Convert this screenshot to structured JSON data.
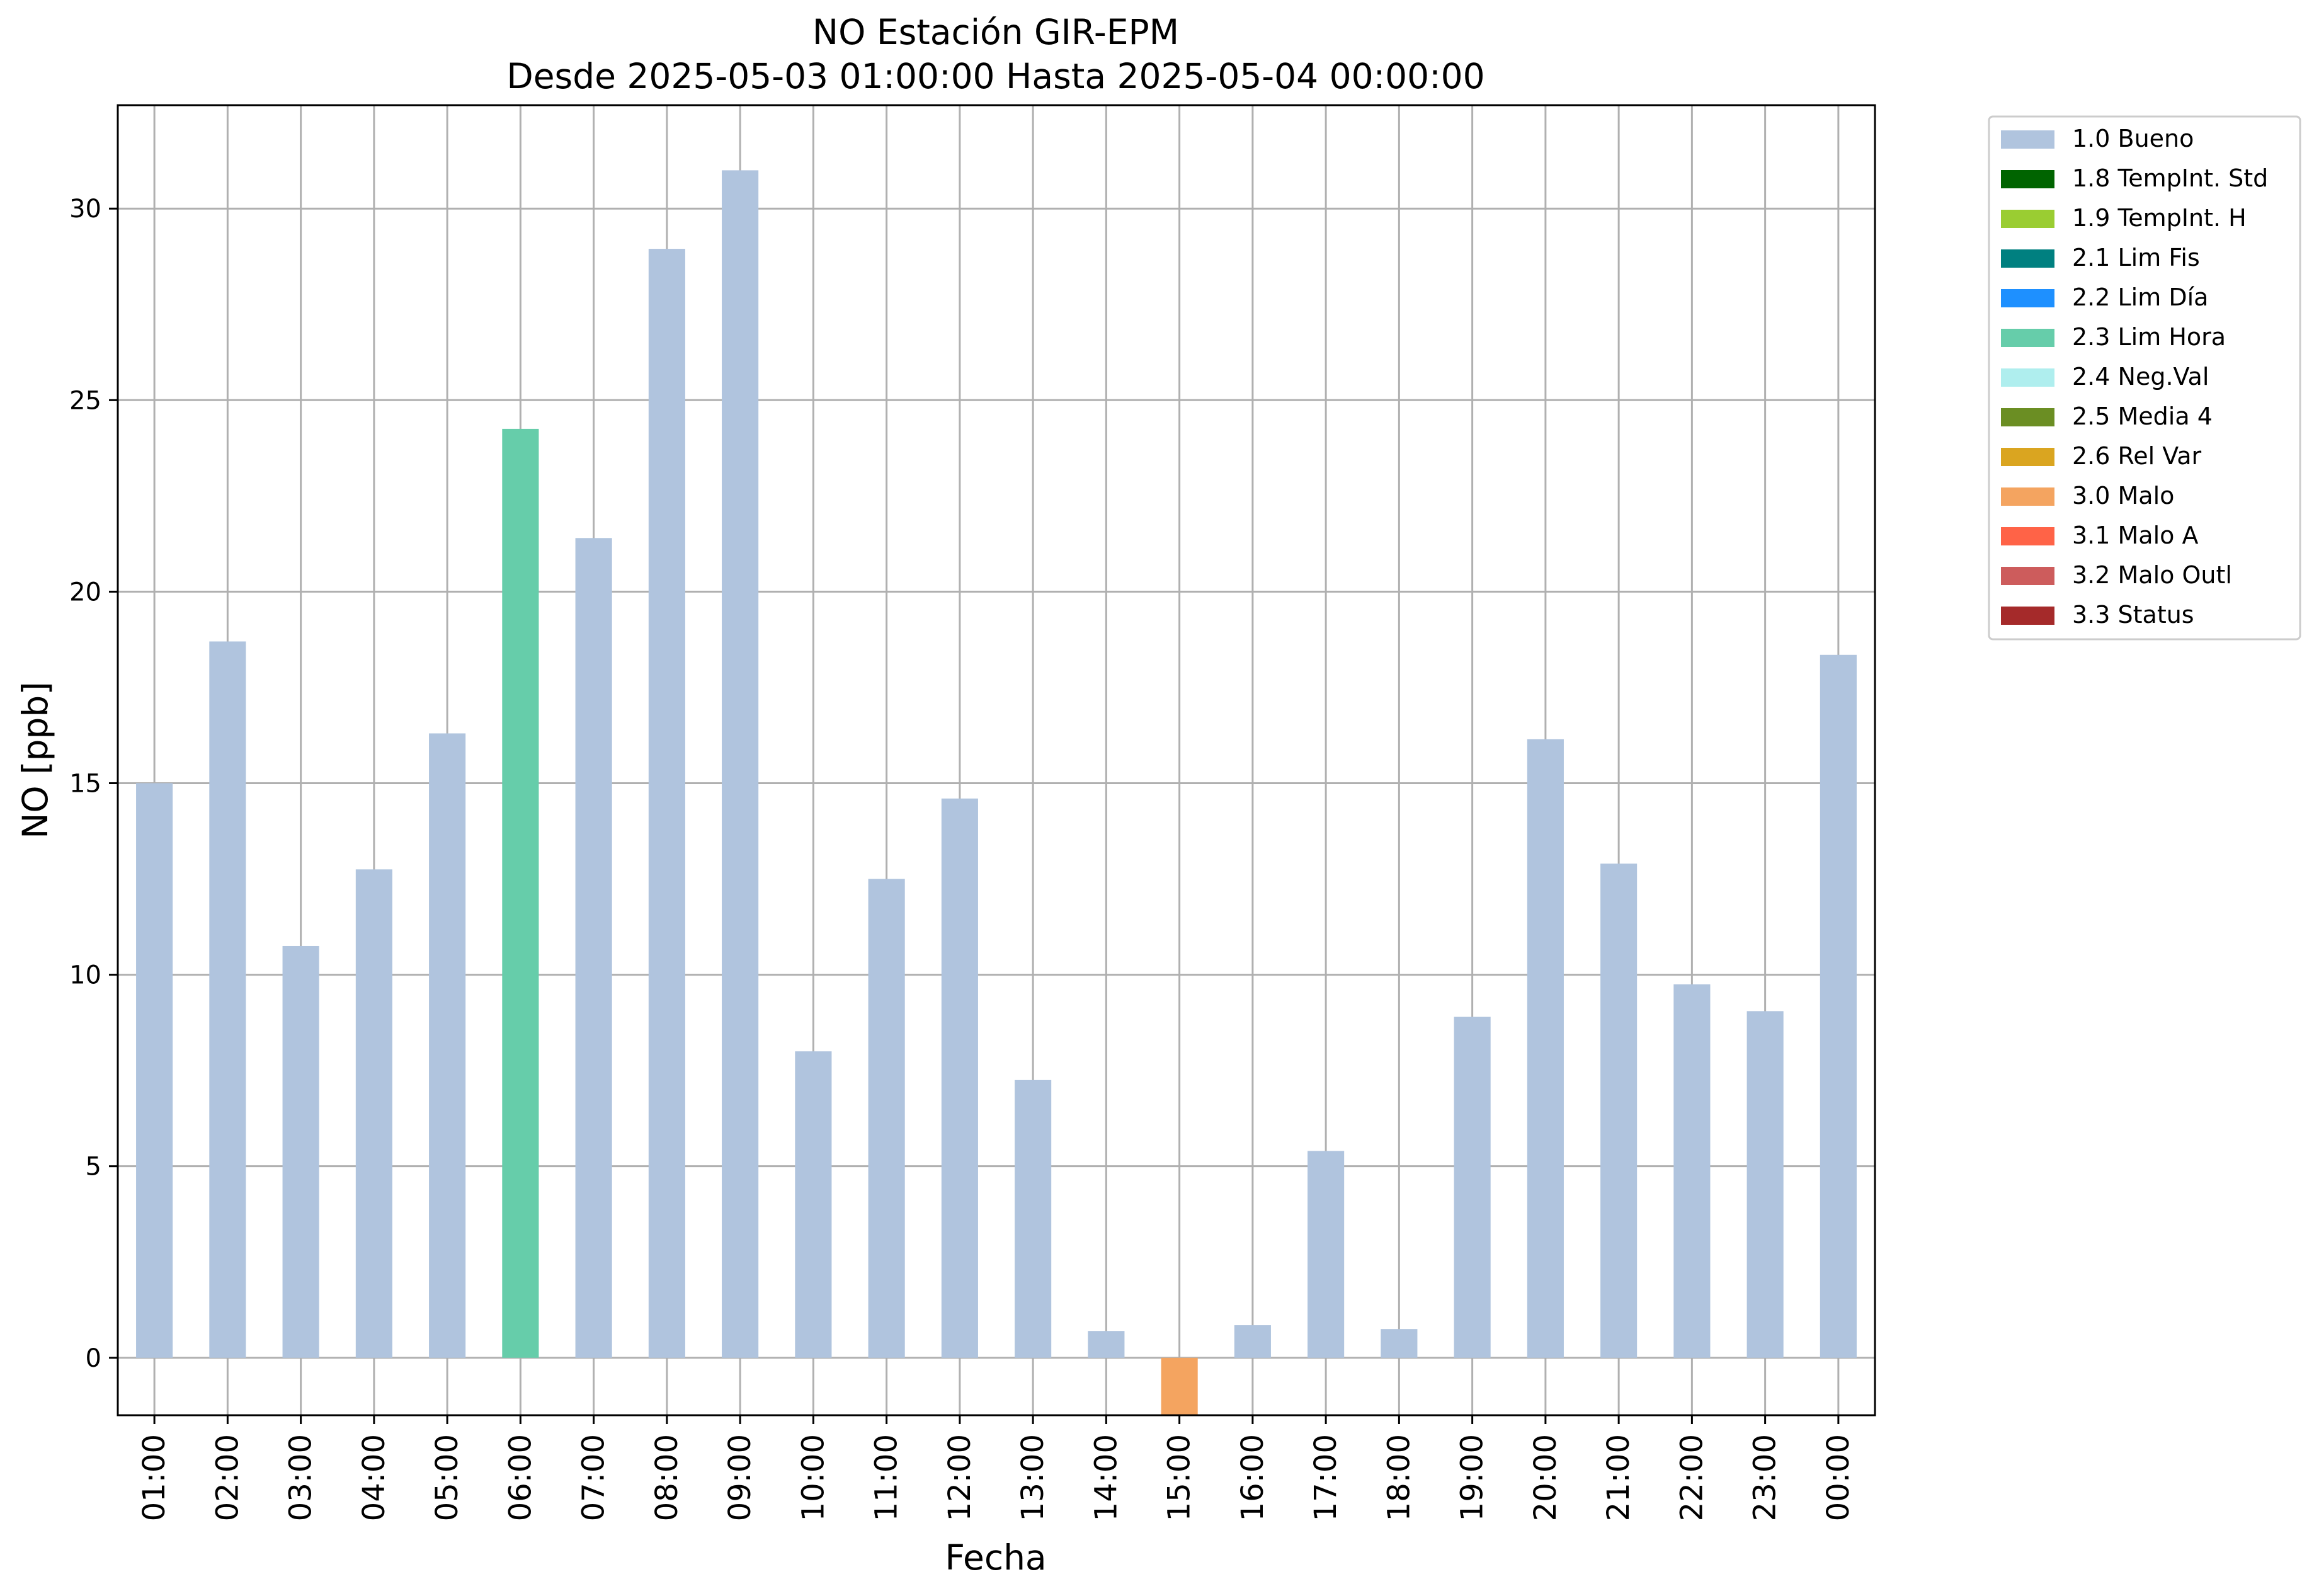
{
  "chart_data": {
    "type": "bar",
    "title": "NO Estación GIR-EPM",
    "subtitle": "Desde 2025-05-03 01:00:00 Hasta 2025-05-04 00:00:00",
    "xlabel": "Fecha",
    "ylabel": "NO [ppb]",
    "ylim": [
      -1.5,
      32.7
    ],
    "yticks": [
      0,
      5,
      10,
      15,
      20,
      25,
      30
    ],
    "grid": true,
    "legend_position": "outside-top-right",
    "categories": [
      "01:00",
      "02:00",
      "03:00",
      "04:00",
      "05:00",
      "06:00",
      "07:00",
      "08:00",
      "09:00",
      "10:00",
      "11:00",
      "12:00",
      "13:00",
      "14:00",
      "15:00",
      "16:00",
      "17:00",
      "18:00",
      "19:00",
      "20:00",
      "21:00",
      "22:00",
      "23:00",
      "00:00"
    ],
    "values": [
      15.0,
      18.7,
      10.75,
      12.75,
      16.3,
      24.25,
      21.4,
      28.95,
      31.0,
      8.0,
      12.5,
      14.6,
      7.25,
      0.7,
      -1.5,
      0.85,
      5.4,
      0.75,
      8.9,
      16.15,
      12.9,
      9.75,
      9.05,
      18.35
    ],
    "flags": [
      "1.0 Bueno",
      "1.0 Bueno",
      "1.0 Bueno",
      "1.0 Bueno",
      "1.0 Bueno",
      "2.3 Lim Hora",
      "1.0 Bueno",
      "1.0 Bueno",
      "1.0 Bueno",
      "1.0 Bueno",
      "1.0 Bueno",
      "1.0 Bueno",
      "1.0 Bueno",
      "1.0 Bueno",
      "3.0 Malo",
      "1.0 Bueno",
      "1.0 Bueno",
      "1.0 Bueno",
      "1.0 Bueno",
      "1.0 Bueno",
      "1.0 Bueno",
      "1.0 Bueno",
      "1.0 Bueno",
      "1.0 Bueno"
    ],
    "legend": [
      {
        "label": "1.0 Bueno",
        "color": "#b0c4de"
      },
      {
        "label": "1.8 TempInt. Std",
        "color": "#006400"
      },
      {
        "label": "1.9 TempInt. H",
        "color": "#9acd32"
      },
      {
        "label": "2.1 Lim Fis",
        "color": "#008080"
      },
      {
        "label": "2.2 Lim Día",
        "color": "#1e90ff"
      },
      {
        "label": "2.3 Lim Hora",
        "color": "#66cdaa"
      },
      {
        "label": "2.4 Neg.Val",
        "color": "#afeeee"
      },
      {
        "label": "2.5 Media 4",
        "color": "#6b8e23"
      },
      {
        "label": "2.6 Rel Var",
        "color": "#daa520"
      },
      {
        "label": "3.0 Malo",
        "color": "#f4a460"
      },
      {
        "label": "3.1 Malo A",
        "color": "#ff6347"
      },
      {
        "label": "3.2 Malo Outl",
        "color": "#cd5c5c"
      },
      {
        "label": "3.3 Status",
        "color": "#a52a2a"
      }
    ]
  }
}
